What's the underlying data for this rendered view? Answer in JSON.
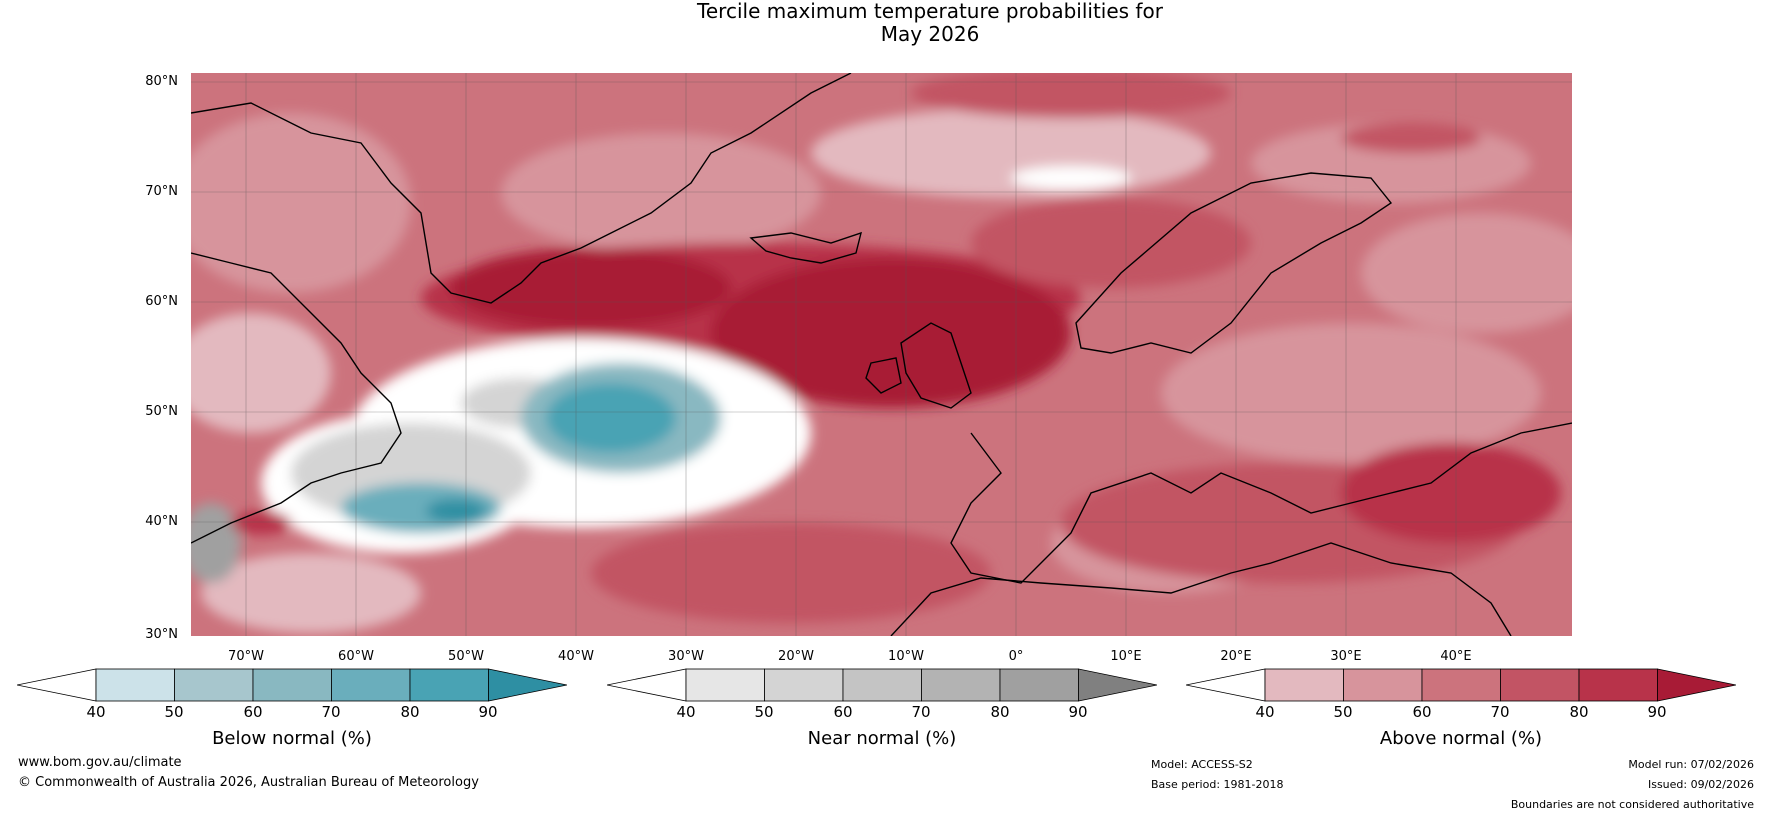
{
  "title": {
    "line1": "Tercile maximum temperature probabilities for",
    "line2": "May 2026"
  },
  "map": {
    "lat_labels": [
      "80°N",
      "70°N",
      "60°N",
      "50°N",
      "40°N",
      "30°N"
    ],
    "lon_labels": [
      "70°W",
      "60°W",
      "50°W",
      "40°W",
      "30°W",
      "20°W",
      "10°W",
      "0°",
      "10°E",
      "20°E",
      "30°E",
      "40°E"
    ]
  },
  "colorbars": [
    {
      "title": "Below normal (%)",
      "ticks": [
        "40",
        "50",
        "60",
        "70",
        "80",
        "90"
      ],
      "colors": [
        "#ffffff",
        "#cce2e9",
        "#a7c6cd",
        "#89b8c1",
        "#6aaebc",
        "#49a3b4",
        "#2e8fa3"
      ]
    },
    {
      "title": "Near normal (%)",
      "ticks": [
        "40",
        "50",
        "60",
        "70",
        "80",
        "90"
      ],
      "colors": [
        "#ffffff",
        "#e6e6e6",
        "#d4d4d4",
        "#c4c4c4",
        "#b3b3b3",
        "#a0a0a0",
        "#808080"
      ]
    },
    {
      "title": "Above normal (%)",
      "ticks": [
        "40",
        "50",
        "60",
        "70",
        "80",
        "90"
      ],
      "colors": [
        "#ffffff",
        "#e3b9bf",
        "#d7949c",
        "#cc737d",
        "#c25464",
        "#b8334a",
        "#a81b36"
      ]
    }
  ],
  "footer": {
    "website": "www.bom.gov.au/climate",
    "copyright": "© Commonwealth of Australia 2026, Australian Bureau of Meteorology",
    "model": "Model: ACCESS-S2",
    "base_period": "Base period: 1981-2018",
    "model_run": "Model run: 07/02/2026",
    "issued": "Issued: 09/02/2026",
    "disclaimer": "Boundaries are not considered authoritative"
  }
}
